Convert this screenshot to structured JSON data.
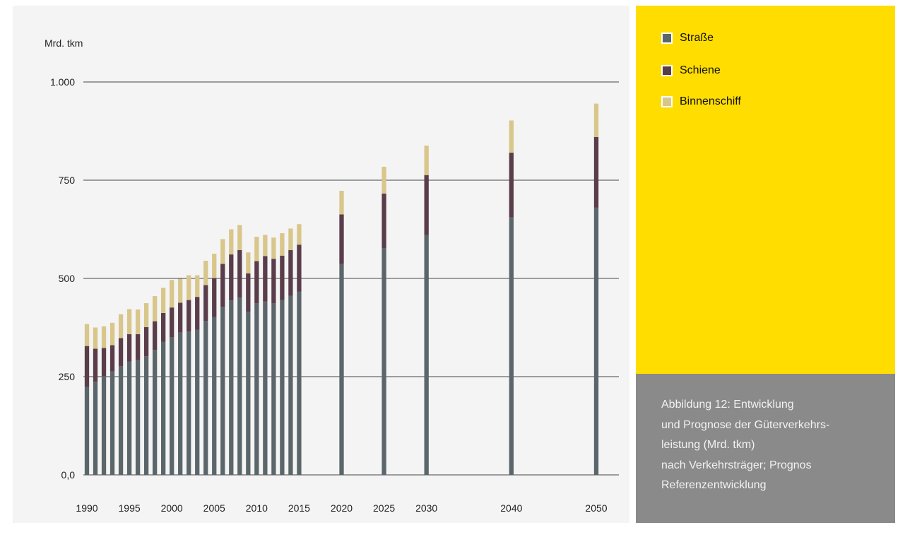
{
  "chart_data": {
    "type": "bar",
    "stacked": true,
    "ylabel": "Mrd. tkm",
    "ylim": [
      0,
      1000
    ],
    "yticks": [
      0,
      250,
      500,
      750,
      1000
    ],
    "ytick_labels": [
      "0,0",
      "250",
      "500",
      "750",
      "1.000"
    ],
    "x_tick_labels": [
      "1990",
      "1995",
      "2000",
      "2005",
      "2010",
      "2015",
      "2020",
      "2025",
      "2030",
      "2040",
      "2050"
    ],
    "grid": "horizontal",
    "legend_position": "right",
    "categories": [
      1990,
      1991,
      1992,
      1993,
      1994,
      1995,
      1996,
      1997,
      1998,
      1999,
      2000,
      2001,
      2002,
      2003,
      2004,
      2005,
      2006,
      2007,
      2008,
      2009,
      2010,
      2011,
      2012,
      2013,
      2014,
      2015,
      2020,
      2025,
      2030,
      2040,
      2050
    ],
    "series": [
      {
        "name": "Straße",
        "color": "#5b666b",
        "values": [
          224,
          237,
          251,
          263,
          277,
          288,
          292,
          302,
          318,
          339,
          350,
          362,
          365,
          369,
          392,
          402,
          428,
          444,
          451,
          415,
          437,
          441,
          437,
          445,
          456,
          466,
          537,
          576,
          610,
          655,
          680
        ]
      },
      {
        "name": "Schiene",
        "color": "#5a3d4a",
        "values": [
          104,
          84,
          72,
          67,
          71,
          70,
          66,
          74,
          73,
          73,
          76,
          76,
          80,
          84,
          91,
          99,
          109,
          117,
          121,
          98,
          107,
          116,
          113,
          113,
          116,
          120,
          126,
          140,
          153,
          165,
          180
        ]
      },
      {
        "name": "Binnenschiff",
        "color": "#d9c68a",
        "values": [
          56,
          54,
          55,
          57,
          61,
          64,
          63,
          61,
          64,
          64,
          70,
          61,
          63,
          55,
          62,
          62,
          63,
          64,
          64,
          53,
          62,
          54,
          54,
          57,
          55,
          52,
          60,
          68,
          75,
          82,
          85
        ]
      }
    ]
  },
  "caption": {
    "lines": [
      "Abbildung 12: Entwicklung",
      "und Prognose der Güterverkehrs-",
      "leistung (Mrd. tkm)",
      "nach Verkehrsträger; Prognos",
      "Referenzentwicklung"
    ]
  },
  "colors": {
    "chart_background": "#f4f4f4",
    "legend_panel": "#ffdd00",
    "caption_panel": "#8a8a8a"
  }
}
